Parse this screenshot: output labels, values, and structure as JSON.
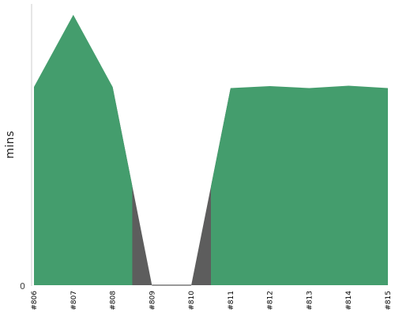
{
  "chart_data": {
    "type": "area",
    "ylabel": "mins",
    "y_tick_labels": [
      "0"
    ],
    "categories": [
      "#806",
      "#807",
      "#808",
      "#809",
      "#810",
      "#811",
      "#812",
      "#813",
      "#814",
      "#815"
    ],
    "series": [
      {
        "color": "#449d6d",
        "values": [
          8.25,
          11.25,
          8.25,
          0,
          0,
          8.2,
          8.28,
          8.2,
          8.3,
          8.2
        ]
      }
    ],
    "ylim": [
      0,
      11.7
    ],
    "grid": false
  },
  "colors": {
    "area": "#449d6d",
    "gap_fill": "#5d5d5d",
    "axis": "#cccccc",
    "baseline": "#333333"
  }
}
